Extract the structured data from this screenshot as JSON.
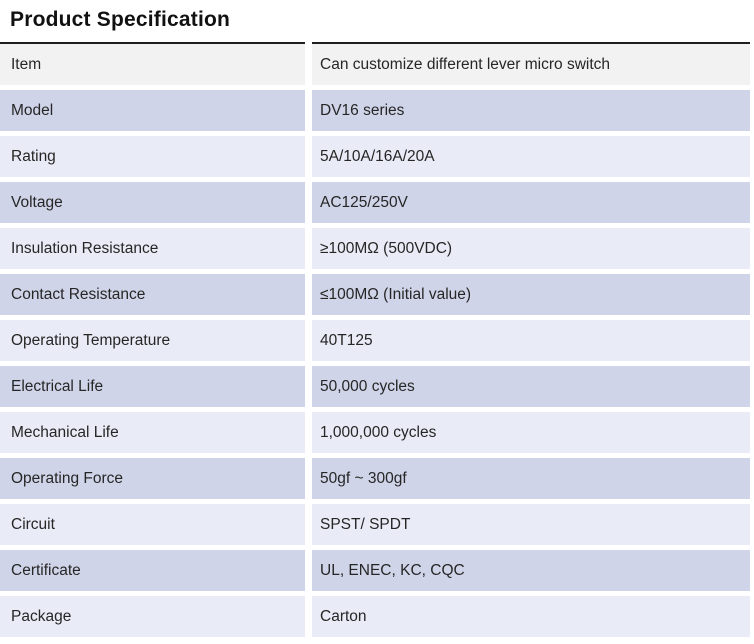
{
  "page_title": "Product Specification",
  "spec_table": {
    "rows": [
      {
        "label": "Item",
        "value": "Can customize different lever micro switch",
        "tone": "header"
      },
      {
        "label": "Model",
        "value": "DV16 series",
        "tone": "medium"
      },
      {
        "label": "Rating",
        "value": "5A/10A/16A/20A",
        "tone": "light"
      },
      {
        "label": "Voltage",
        "value": "AC125/250V",
        "tone": "medium"
      },
      {
        "label": "Insulation Resistance",
        "value": "≥100MΩ (500VDC)",
        "tone": "light"
      },
      {
        "label": "Contact Resistance",
        "value": "≤100MΩ (Initial value)",
        "tone": "medium"
      },
      {
        "label": "Operating Temperature",
        "value": "40T125",
        "tone": "light"
      },
      {
        "label": "Electrical Life",
        "value": "50,000 cycles",
        "tone": "medium"
      },
      {
        "label": "Mechanical Life",
        "value": "1,000,000 cycles",
        "tone": "light"
      },
      {
        "label": "Operating Force",
        "value": "50gf ~ 300gf",
        "tone": "medium"
      },
      {
        "label": "Circuit",
        "value": "SPST/ SPDT",
        "tone": "light"
      },
      {
        "label": "Certificate",
        "value": "UL, ENEC, KC, CQC",
        "tone": "medium"
      },
      {
        "label": "Package",
        "value": "Carton",
        "tone": "light"
      }
    ]
  },
  "colors": {
    "header_row_bg": "#f2f2f2",
    "medium_row_bg": "#d0d4e8",
    "light_row_bg": "#e9ecf6",
    "top_rule": "#1f1f1f",
    "text": "#262626",
    "title_text": "#111111"
  }
}
